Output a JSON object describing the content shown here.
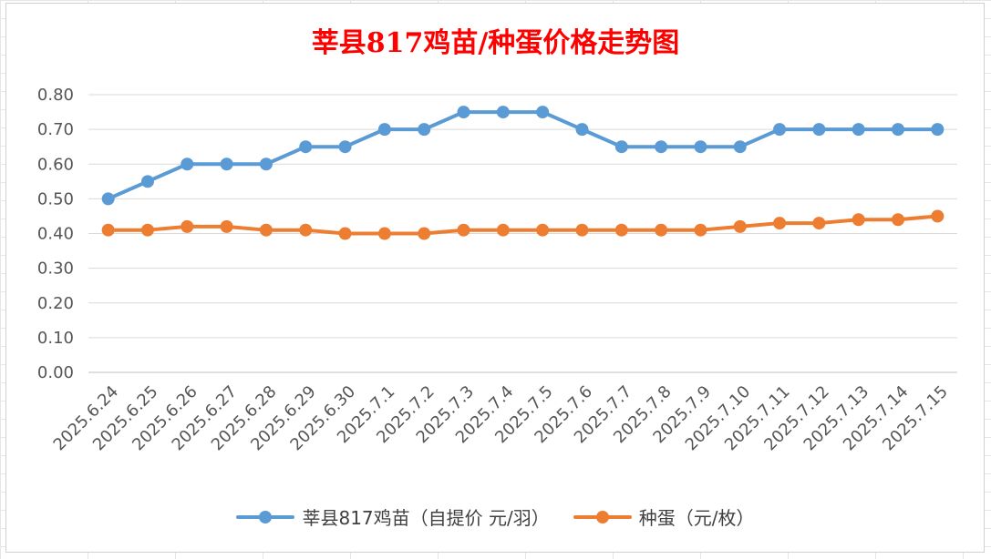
{
  "chart_data": {
    "type": "line",
    "title": "莘县817鸡苗/种蛋价格走势图",
    "categories": [
      "2025.6.24",
      "2025.6.25",
      "2025.6.26",
      "2025.6.27",
      "2025.6.28",
      "2025.6.29",
      "2025.6.30",
      "2025.7.1",
      "2025.7.2",
      "2025.7.3",
      "2025.7.4",
      "2025.7.5",
      "2025.7.6",
      "2025.7.7",
      "2025.7.8",
      "2025.7.9",
      "2025.7.10",
      "2025.7.11",
      "2025.7.12",
      "2025.7.13",
      "2025.7.14",
      "2025.7.15"
    ],
    "series": [
      {
        "name": "莘县817鸡苗（自提价 元/羽）",
        "color": "#5b9bd5",
        "values": [
          0.5,
          0.55,
          0.6,
          0.6,
          0.6,
          0.65,
          0.65,
          0.7,
          0.7,
          0.75,
          0.75,
          0.75,
          0.7,
          0.65,
          0.65,
          0.65,
          0.65,
          0.7,
          0.7,
          0.7,
          0.7,
          0.7
        ]
      },
      {
        "name": "种蛋（元/枚）",
        "color": "#ed7d31",
        "values": [
          0.41,
          0.41,
          0.42,
          0.42,
          0.41,
          0.41,
          0.4,
          0.4,
          0.4,
          0.41,
          0.41,
          0.41,
          0.41,
          0.41,
          0.41,
          0.41,
          0.42,
          0.43,
          0.43,
          0.44,
          0.44,
          0.45
        ]
      }
    ],
    "ylim": [
      0,
      0.8
    ],
    "yticks": [
      "0.00",
      "0.10",
      "0.20",
      "0.30",
      "0.40",
      "0.50",
      "0.60",
      "0.70",
      "0.80"
    ],
    "grid": true,
    "legend_position": "bottom"
  }
}
